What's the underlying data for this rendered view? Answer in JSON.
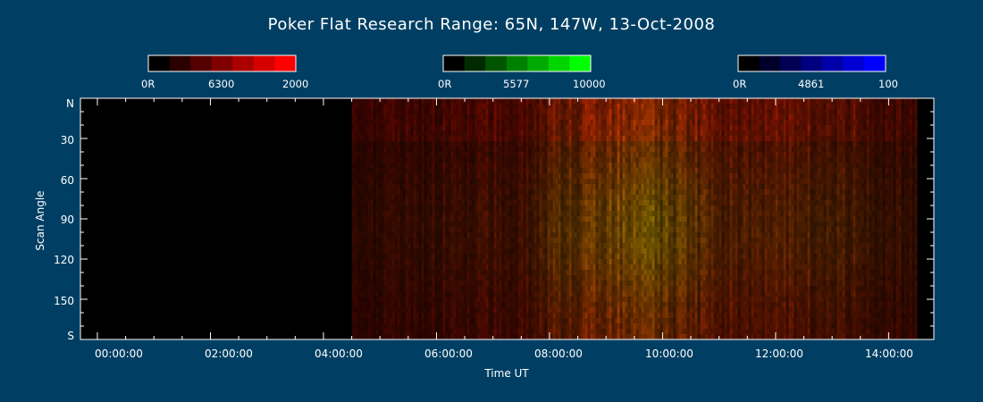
{
  "chart_data": {
    "type": "heatmap",
    "title": "Poker Flat Research Range: 65N, 147W, 13-Oct-2008",
    "xlabel": "Time UT",
    "ylabel": "Scan Angle",
    "x_ticks": [
      "00:00:00",
      "02:00:00",
      "04:00:00",
      "06:00:00",
      "08:00:00",
      "10:00:00",
      "12:00:00",
      "14:00:00"
    ],
    "y_ticks": [
      "N",
      "30",
      "60",
      "90",
      "120",
      "150",
      "S"
    ],
    "xlim_hours": [
      -0.3,
      14.8
    ],
    "ylim_deg": [
      0,
      180
    ],
    "colorbars": [
      {
        "channel": "6300",
        "min_label": "0R",
        "mid_label": "6300",
        "max_label": "2000",
        "color": "#ff0000"
      },
      {
        "channel": "5577",
        "min_label": "0R",
        "mid_label": "5577",
        "max_label": "10000",
        "color": "#00ff00"
      },
      {
        "channel": "4861",
        "min_label": "0R",
        "mid_label": "4861",
        "max_label": "100",
        "color": "#0000ff"
      }
    ],
    "data_start_hour": 4.5,
    "data_end_hour": 14.5,
    "intensity_profile": [
      {
        "hour": 4.5,
        "red": 0.25,
        "green": 0.05
      },
      {
        "hour": 6.0,
        "red": 0.3,
        "green": 0.08
      },
      {
        "hour": 7.5,
        "red": 0.35,
        "green": 0.1
      },
      {
        "hour": 8.2,
        "red": 0.45,
        "green": 0.3
      },
      {
        "hour": 8.6,
        "red": 0.55,
        "green": 0.35
      },
      {
        "hour": 9.2,
        "red": 0.6,
        "green": 0.45
      },
      {
        "hour": 9.8,
        "red": 0.55,
        "green": 0.5
      },
      {
        "hour": 10.4,
        "red": 0.5,
        "green": 0.35
      },
      {
        "hour": 11.0,
        "red": 0.45,
        "green": 0.2
      },
      {
        "hour": 12.0,
        "red": 0.45,
        "green": 0.2
      },
      {
        "hour": 13.0,
        "red": 0.4,
        "green": 0.2
      },
      {
        "hour": 14.0,
        "red": 0.3,
        "green": 0.1
      }
    ]
  }
}
